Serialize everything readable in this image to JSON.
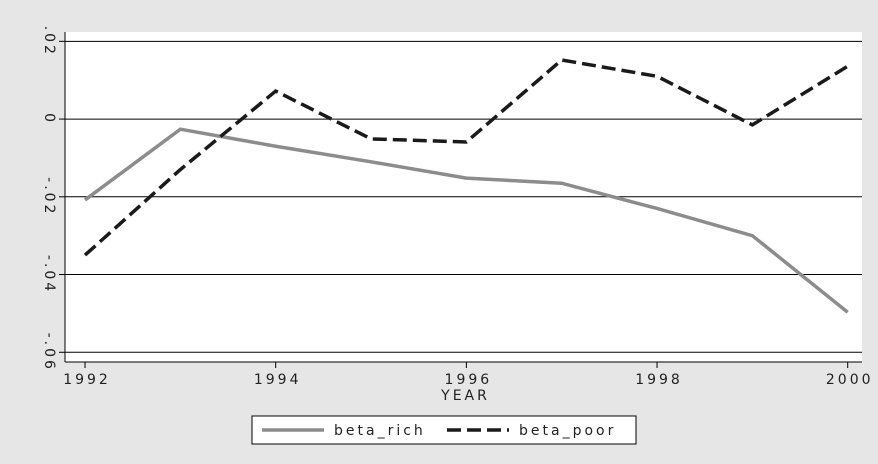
{
  "chart_data": {
    "type": "line",
    "x": [
      1992,
      1993,
      1994,
      1995,
      1996,
      1997,
      1998,
      1999,
      2000
    ],
    "series": [
      {
        "name": "beta_rich",
        "color": "#8c8c8c",
        "dash": false,
        "values": [
          -0.0208,
          -0.0026,
          -0.007,
          -0.011,
          -0.0152,
          -0.0165,
          -0.023,
          -0.03,
          -0.0497
        ]
      },
      {
        "name": "beta_poor",
        "color": "#1a1a1a",
        "dash": true,
        "values": [
          -0.035,
          -0.013,
          0.0072,
          -0.0051,
          -0.0059,
          0.0152,
          0.011,
          -0.0015,
          0.0136
        ]
      }
    ],
    "xlabel": "YEAR",
    "xlim": [
      1991.79,
      2000.15
    ],
    "ylim": [
      -0.0625,
      0.0224
    ],
    "xticks": [
      1992,
      1994,
      1996,
      1998,
      2000
    ],
    "yticks": [
      {
        "value": 0.02,
        "label": ".02"
      },
      0,
      {
        "value": -0.02,
        "label": "-.02"
      },
      {
        "value": -0.04,
        "label": "-.04"
      },
      {
        "value": -0.06,
        "label": "-.06"
      }
    ],
    "grid": true,
    "legend": "bottom"
  }
}
